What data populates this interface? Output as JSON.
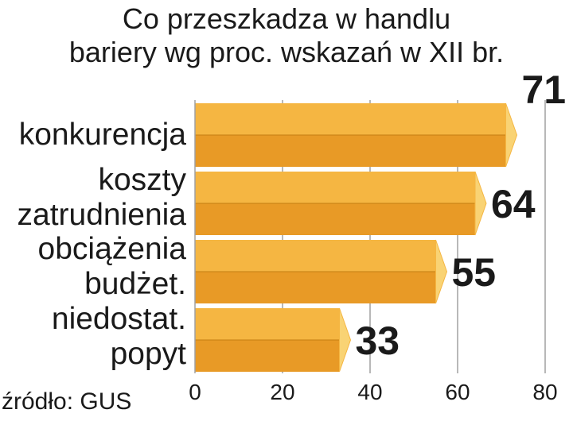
{
  "chart_data": {
    "type": "bar",
    "orientation": "horizontal",
    "title_line1": "Co przeszkadza w handlu",
    "title_line2": "bariery wg proc. wskazań w XII br.",
    "categories": [
      [
        "konkurencja"
      ],
      [
        "koszty",
        "zatrudnienia"
      ],
      [
        "obciążenia",
        "budżet."
      ],
      [
        "niedostat.",
        "popyt"
      ]
    ],
    "values": [
      71,
      64,
      55,
      33
    ],
    "xticks": [
      0,
      20,
      40,
      60,
      80
    ],
    "xlim": [
      0,
      80
    ],
    "grid": true,
    "source": "źródło: GUS",
    "colors": {
      "bar_top": "#F5B642",
      "bar_bottom": "#E89A26",
      "bar_cap": "#F9D374",
      "bar_edge": "#C47D12",
      "grid": "#A0A0A0"
    }
  }
}
